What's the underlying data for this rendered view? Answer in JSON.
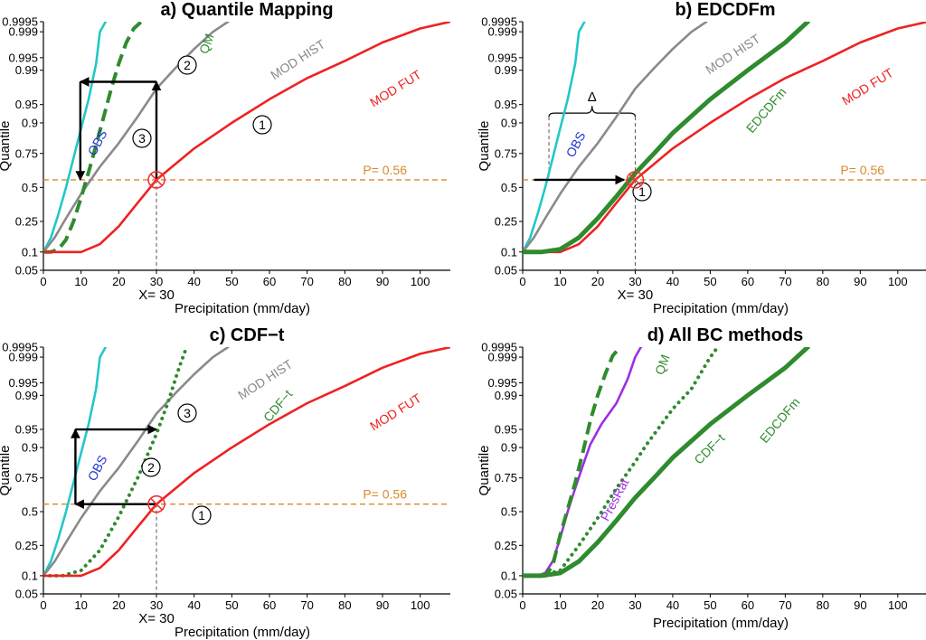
{
  "chart_data": [
    {
      "type": "line",
      "title": "a) Quantile Mapping",
      "xlabel": "Precipitation (mm/day)",
      "ylabel": "Quantile",
      "x_marker_label": "X= 30",
      "xlim": [
        0,
        108
      ],
      "ylim_quantile": [
        0.05,
        0.9995
      ],
      "y_scale": "probit",
      "xticks": [
        0,
        10,
        20,
        30,
        40,
        50,
        60,
        70,
        80,
        90,
        100
      ],
      "yticks": [
        0.05,
        0.1,
        0.25,
        0.5,
        0.75,
        0.9,
        0.95,
        0.99,
        0.995,
        0.999,
        0.9995
      ],
      "ytick_labels": [
        "0.05",
        "0.1",
        "0.25",
        "0.5",
        "0.75",
        "0.9",
        "0.95",
        "0.99",
        "0.995",
        "0.999",
        "0.9995"
      ],
      "p_line": {
        "y": 0.56,
        "label": "P= 0.56",
        "color": "#d98a2b"
      },
      "marker": {
        "x": 30,
        "y": 0.56
      },
      "series": [
        {
          "name": "OBS",
          "color": "#22c7c9",
          "style": "solid",
          "x": [
            0,
            2,
            4,
            6,
            8,
            10,
            12,
            14,
            15,
            16.5
          ],
          "y": [
            0.1,
            0.16,
            0.3,
            0.5,
            0.72,
            0.88,
            0.96,
            0.993,
            0.999,
            0.9995
          ]
        },
        {
          "name": "MOD HIST",
          "color": "#8a8a8a",
          "style": "solid",
          "x": [
            0,
            3,
            6,
            10,
            15,
            20,
            25,
            30,
            35,
            40,
            45,
            49
          ],
          "y": [
            0.1,
            0.16,
            0.27,
            0.45,
            0.66,
            0.81,
            0.92,
            0.975,
            0.991,
            0.997,
            0.999,
            0.9995
          ]
        },
        {
          "name": "QM",
          "color": "#2e8b2e",
          "style": "dashed",
          "x": [
            0,
            2,
            4,
            6,
            8,
            10,
            12,
            14,
            16,
            18,
            20,
            22,
            24,
            26
          ],
          "y": [
            0.1,
            0.1,
            0.11,
            0.15,
            0.25,
            0.42,
            0.62,
            0.8,
            0.92,
            0.975,
            0.993,
            0.998,
            0.9992,
            0.9995
          ]
        },
        {
          "name": "MOD FUT",
          "color": "#ee2222",
          "style": "solid",
          "x": [
            0,
            10,
            15,
            20,
            25,
            30,
            40,
            50,
            60,
            70,
            80,
            90,
            100,
            108
          ],
          "y": [
            0.1,
            0.1,
            0.13,
            0.22,
            0.38,
            0.56,
            0.78,
            0.9,
            0.96,
            0.985,
            0.994,
            0.998,
            0.9992,
            0.9995
          ]
        }
      ],
      "steps": [
        {
          "label": "1",
          "from": [
            30,
            0.56
          ],
          "to": [
            30,
            0.982
          ]
        },
        {
          "label": "2",
          "from": [
            30,
            0.982
          ],
          "to": [
            9.8,
            0.982
          ]
        },
        {
          "label": "3",
          "from": [
            9.8,
            0.982
          ],
          "to": [
            9.8,
            0.56
          ]
        }
      ]
    },
    {
      "type": "line",
      "title": "b) EDCDFm",
      "xlabel": "Precipitation (mm/day)",
      "ylabel": "Quantile",
      "x_marker_label": "X= 30",
      "delta_label": "Δ",
      "xlim": [
        0,
        108
      ],
      "ylim_quantile": [
        0.05,
        0.9995
      ],
      "y_scale": "probit",
      "xticks": [
        0,
        10,
        20,
        30,
        40,
        50,
        60,
        70,
        80,
        90,
        100
      ],
      "yticks": [
        0.05,
        0.1,
        0.25,
        0.5,
        0.75,
        0.9,
        0.95,
        0.99,
        0.995,
        0.999,
        0.9995
      ],
      "ytick_labels": [
        "0.05",
        "0.1",
        "0.25",
        "0.5",
        "0.75",
        "0.9",
        "0.95",
        "0.99",
        "0.995",
        "0.999",
        "0.9995"
      ],
      "p_line": {
        "y": 0.56,
        "label": "P= 0.56",
        "color": "#d98a2b"
      },
      "marker": {
        "x": 30,
        "y": 0.56
      },
      "series": [
        {
          "name": "OBS",
          "color": "#22c7c9",
          "style": "solid",
          "x": [
            0,
            2,
            4,
            6,
            8,
            10,
            12,
            14,
            15,
            16.5
          ],
          "y": [
            0.1,
            0.16,
            0.3,
            0.5,
            0.72,
            0.88,
            0.96,
            0.993,
            0.999,
            0.9995
          ]
        },
        {
          "name": "MOD HIST",
          "color": "#8a8a8a",
          "style": "solid",
          "x": [
            0,
            3,
            6,
            10,
            15,
            20,
            25,
            30,
            35,
            40,
            45,
            49
          ],
          "y": [
            0.1,
            0.16,
            0.27,
            0.45,
            0.66,
            0.81,
            0.92,
            0.975,
            0.991,
            0.997,
            0.999,
            0.9995
          ]
        },
        {
          "name": "MOD FUT",
          "color": "#ee2222",
          "style": "solid",
          "x": [
            0,
            10,
            15,
            20,
            25,
            30,
            40,
            50,
            60,
            70,
            80,
            90,
            100,
            108
          ],
          "y": [
            0.1,
            0.1,
            0.13,
            0.22,
            0.38,
            0.56,
            0.78,
            0.9,
            0.96,
            0.985,
            0.994,
            0.998,
            0.9992,
            0.9995
          ]
        },
        {
          "name": "EDCDFm",
          "color": "#2e8b2e",
          "style": "thick",
          "x": [
            0,
            5,
            10,
            15,
            20,
            25,
            30,
            35,
            40,
            50,
            60,
            70,
            76
          ],
          "y": [
            0.1,
            0.1,
            0.11,
            0.16,
            0.27,
            0.43,
            0.61,
            0.75,
            0.86,
            0.96,
            0.99,
            0.998,
            0.9995
          ]
        }
      ],
      "steps": [
        {
          "label": "1",
          "from": [
            3,
            0.56
          ],
          "to": [
            27,
            0.56
          ]
        }
      ],
      "delta": {
        "x_from": 7,
        "x_to": 30,
        "y": 0.93
      }
    },
    {
      "type": "line",
      "title": "c) CDF−t",
      "xlabel": "Precipitation (mm/day)",
      "ylabel": "Quantile",
      "x_marker_label": "X= 30",
      "xlim": [
        0,
        108
      ],
      "ylim_quantile": [
        0.05,
        0.9995
      ],
      "y_scale": "probit",
      "xticks": [
        0,
        10,
        20,
        30,
        40,
        50,
        60,
        70,
        80,
        90,
        100
      ],
      "yticks": [
        0.05,
        0.1,
        0.25,
        0.5,
        0.75,
        0.9,
        0.95,
        0.99,
        0.995,
        0.999,
        0.9995
      ],
      "ytick_labels": [
        "0.05",
        "0.1",
        "0.25",
        "0.5",
        "0.75",
        "0.9",
        "0.95",
        "0.99",
        "0.995",
        "0.999",
        "0.9995"
      ],
      "p_line": {
        "y": 0.56,
        "label": "P= 0.56",
        "color": "#d98a2b"
      },
      "marker": {
        "x": 30,
        "y": 0.56
      },
      "series": [
        {
          "name": "OBS",
          "color": "#22c7c9",
          "style": "solid",
          "x": [
            0,
            2,
            4,
            6,
            8,
            10,
            12,
            14,
            15,
            16.5
          ],
          "y": [
            0.1,
            0.16,
            0.3,
            0.5,
            0.72,
            0.88,
            0.96,
            0.993,
            0.999,
            0.9995
          ]
        },
        {
          "name": "MOD HIST",
          "color": "#8a8a8a",
          "style": "solid",
          "x": [
            0,
            3,
            6,
            10,
            15,
            20,
            25,
            30,
            35,
            40,
            45,
            49
          ],
          "y": [
            0.1,
            0.16,
            0.27,
            0.45,
            0.66,
            0.81,
            0.92,
            0.975,
            0.991,
            0.997,
            0.999,
            0.9995
          ]
        },
        {
          "name": "CDF−t",
          "color": "#2e8b2e",
          "style": "dotted",
          "x": [
            0,
            5,
            10,
            15,
            20,
            25,
            30,
            33,
            36,
            38
          ],
          "y": [
            0.1,
            0.1,
            0.12,
            0.22,
            0.46,
            0.75,
            0.94,
            0.985,
            0.998,
            0.9995
          ]
        },
        {
          "name": "MOD FUT",
          "color": "#ee2222",
          "style": "solid",
          "x": [
            0,
            10,
            15,
            20,
            25,
            30,
            40,
            50,
            60,
            70,
            80,
            90,
            100,
            108
          ],
          "y": [
            0.1,
            0.1,
            0.13,
            0.22,
            0.38,
            0.56,
            0.78,
            0.9,
            0.96,
            0.985,
            0.994,
            0.998,
            0.9992,
            0.9995
          ]
        }
      ],
      "steps": [
        {
          "label": "1",
          "from": [
            30,
            0.56
          ],
          "to": [
            8.5,
            0.56
          ]
        },
        {
          "label": "2",
          "from": [
            8.5,
            0.56
          ],
          "to": [
            8.5,
            0.95
          ]
        },
        {
          "label": "3",
          "from": [
            8.5,
            0.95
          ],
          "to": [
            30,
            0.95
          ]
        }
      ]
    },
    {
      "type": "line",
      "title": "d) All BC methods",
      "xlabel": "Precipitation (mm/day)",
      "ylabel": "Quantile",
      "xlim": [
        0,
        108
      ],
      "ylim_quantile": [
        0.05,
        0.9995
      ],
      "y_scale": "probit",
      "xticks": [
        0,
        10,
        20,
        30,
        40,
        50,
        60,
        70,
        80,
        90,
        100
      ],
      "yticks": [
        0.05,
        0.1,
        0.25,
        0.5,
        0.75,
        0.9,
        0.95,
        0.99,
        0.995,
        0.999,
        0.9995
      ],
      "ytick_labels": [
        "0.05",
        "0.1",
        "0.25",
        "0.5",
        "0.75",
        "0.9",
        "0.95",
        "0.99",
        "0.995",
        "0.999",
        "0.9995"
      ],
      "series": [
        {
          "name": "PresRat",
          "color": "#9b30e0",
          "style": "solid",
          "x": [
            0,
            4,
            6,
            8,
            10,
            12,
            14,
            16,
            18,
            21,
            25,
            28,
            30,
            31.5
          ],
          "y": [
            0.1,
            0.1,
            0.11,
            0.16,
            0.3,
            0.5,
            0.68,
            0.82,
            0.91,
            0.96,
            0.985,
            0.996,
            0.999,
            0.9995
          ]
        },
        {
          "name": "QM",
          "color": "#2e8b2e",
          "style": "dashed",
          "x": [
            0,
            6,
            8,
            10,
            12,
            14,
            16,
            18,
            20,
            22,
            24,
            26
          ],
          "y": [
            0.1,
            0.1,
            0.14,
            0.32,
            0.52,
            0.72,
            0.88,
            0.965,
            0.99,
            0.997,
            0.9991,
            0.9995
          ]
        },
        {
          "name": "CDF−t",
          "color": "#2e8b2e",
          "style": "dotted",
          "x": [
            0,
            5,
            10,
            15,
            20,
            25,
            30,
            33,
            36,
            40,
            45,
            50,
            52
          ],
          "y": [
            0.1,
            0.1,
            0.12,
            0.25,
            0.45,
            0.68,
            0.84,
            0.91,
            0.95,
            0.98,
            0.993,
            0.999,
            0.9995
          ]
        },
        {
          "name": "EDCDFm",
          "color": "#2e8b2e",
          "style": "thick",
          "x": [
            0,
            5,
            10,
            15,
            20,
            25,
            30,
            35,
            40,
            50,
            60,
            70,
            76
          ],
          "y": [
            0.1,
            0.1,
            0.11,
            0.16,
            0.27,
            0.43,
            0.61,
            0.75,
            0.86,
            0.96,
            0.99,
            0.998,
            0.9995
          ]
        }
      ]
    }
  ]
}
